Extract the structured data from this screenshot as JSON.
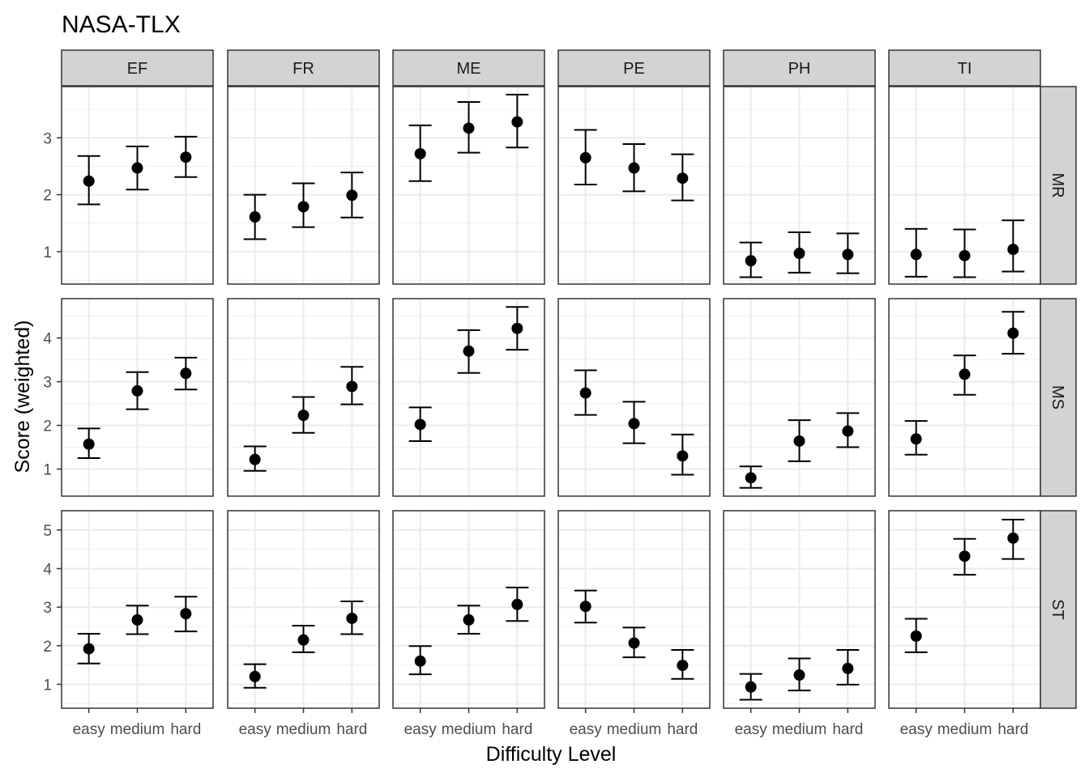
{
  "chart_data": {
    "type": "scatter",
    "title": "NASA-TLX",
    "xlabel": "Difficulty Level",
    "ylabel": "Score (weighted)",
    "categories": [
      "easy",
      "medium",
      "hard"
    ],
    "column_facets": [
      "EF",
      "FR",
      "ME",
      "PE",
      "PH",
      "TI"
    ],
    "row_facets": [
      "MR",
      "MS",
      "ST"
    ],
    "grid": true,
    "error_bars": true,
    "rows": [
      {
        "facet": "MR",
        "ylim": [
          0.43,
          3.9
        ],
        "yticks": [
          1,
          2,
          3
        ],
        "panels": [
          {
            "facet": "EF",
            "mean": [
              2.24,
              2.47,
              2.66
            ],
            "lower": [
              1.83,
              2.09,
              2.31
            ],
            "upper": [
              2.68,
              2.85,
              3.02
            ]
          },
          {
            "facet": "FR",
            "mean": [
              1.61,
              1.79,
              1.99
            ],
            "lower": [
              1.22,
              1.43,
              1.6
            ],
            "upper": [
              2.0,
              2.2,
              2.39
            ]
          },
          {
            "facet": "ME",
            "mean": [
              2.72,
              3.17,
              3.28
            ],
            "lower": [
              2.24,
              2.74,
              2.83
            ],
            "upper": [
              3.22,
              3.63,
              3.76
            ]
          },
          {
            "facet": "PE",
            "mean": [
              2.65,
              2.47,
              2.29
            ],
            "lower": [
              2.18,
              2.06,
              1.9
            ],
            "upper": [
              3.14,
              2.89,
              2.71
            ]
          },
          {
            "facet": "PH",
            "mean": [
              0.84,
              0.97,
              0.95
            ],
            "lower": [
              0.55,
              0.63,
              0.62
            ],
            "upper": [
              1.16,
              1.34,
              1.32
            ]
          },
          {
            "facet": "TI",
            "mean": [
              0.95,
              0.93,
              1.04
            ],
            "lower": [
              0.56,
              0.55,
              0.65
            ],
            "upper": [
              1.4,
              1.39,
              1.55
            ]
          }
        ]
      },
      {
        "facet": "MS",
        "ylim": [
          0.38,
          4.9
        ],
        "yticks": [
          1,
          2,
          3,
          4
        ],
        "panels": [
          {
            "facet": "EF",
            "mean": [
              1.57,
              2.79,
              3.19
            ],
            "lower": [
              1.25,
              2.37,
              2.82
            ],
            "upper": [
              1.93,
              3.22,
              3.55
            ]
          },
          {
            "facet": "FR",
            "mean": [
              1.22,
              2.23,
              2.89
            ],
            "lower": [
              0.96,
              1.83,
              2.48
            ],
            "upper": [
              1.52,
              2.65,
              3.34
            ]
          },
          {
            "facet": "ME",
            "mean": [
              2.02,
              3.7,
              4.22
            ],
            "lower": [
              1.64,
              3.2,
              3.73
            ],
            "upper": [
              2.41,
              4.18,
              4.71
            ]
          },
          {
            "facet": "PE",
            "mean": [
              2.74,
              2.04,
              1.3
            ],
            "lower": [
              2.24,
              1.59,
              0.87
            ],
            "upper": [
              3.26,
              2.54,
              1.79
            ]
          },
          {
            "facet": "PH",
            "mean": [
              0.8,
              1.64,
              1.87
            ],
            "lower": [
              0.57,
              1.18,
              1.5
            ],
            "upper": [
              1.06,
              2.12,
              2.28
            ]
          },
          {
            "facet": "TI",
            "mean": [
              1.69,
              3.17,
              4.11
            ],
            "lower": [
              1.33,
              2.7,
              3.64
            ],
            "upper": [
              2.1,
              3.6,
              4.6
            ]
          }
        ]
      },
      {
        "facet": "ST",
        "ylim": [
          0.38,
          5.5
        ],
        "yticks": [
          1,
          2,
          3,
          4,
          5
        ],
        "panels": [
          {
            "facet": "EF",
            "mean": [
              1.92,
              2.67,
              2.83
            ],
            "lower": [
              1.54,
              2.3,
              2.37
            ],
            "upper": [
              2.31,
              3.04,
              3.27
            ]
          },
          {
            "facet": "FR",
            "mean": [
              1.2,
              2.15,
              2.71
            ],
            "lower": [
              0.91,
              1.83,
              2.3
            ],
            "upper": [
              1.52,
              2.52,
              3.15
            ]
          },
          {
            "facet": "ME",
            "mean": [
              1.6,
              2.67,
              3.07
            ],
            "lower": [
              1.26,
              2.31,
              2.64
            ],
            "upper": [
              1.99,
              3.04,
              3.51
            ]
          },
          {
            "facet": "PE",
            "mean": [
              3.02,
              2.07,
              1.49
            ],
            "lower": [
              2.6,
              1.7,
              1.14
            ],
            "upper": [
              3.43,
              2.47,
              1.89
            ]
          },
          {
            "facet": "PH",
            "mean": [
              0.93,
              1.24,
              1.41
            ],
            "lower": [
              0.6,
              0.84,
              0.99
            ],
            "upper": [
              1.27,
              1.67,
              1.89
            ]
          },
          {
            "facet": "TI",
            "mean": [
              2.25,
              4.32,
              4.79
            ],
            "lower": [
              1.83,
              3.84,
              4.25
            ],
            "upper": [
              2.7,
              4.77,
              5.27
            ]
          }
        ]
      }
    ]
  }
}
